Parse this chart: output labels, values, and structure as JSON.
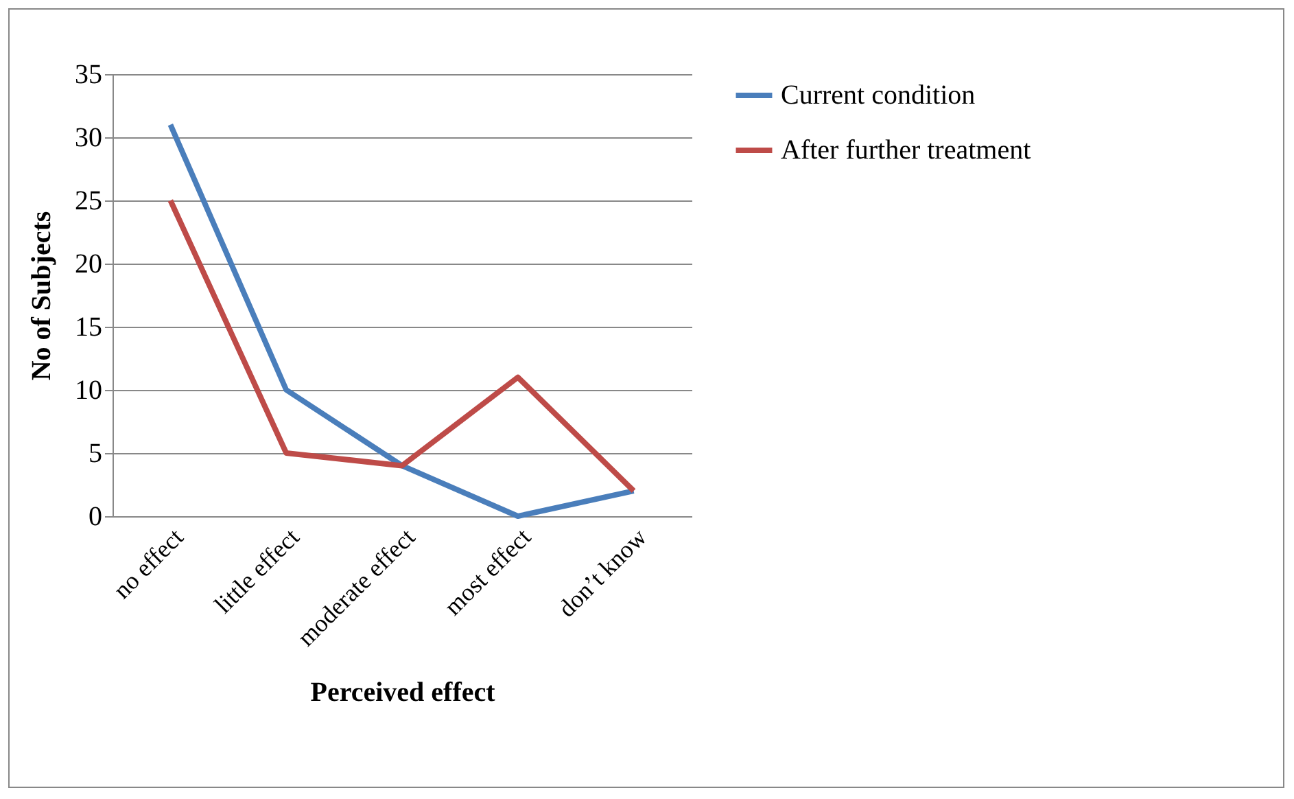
{
  "chart_data": {
    "type": "line",
    "xlabel": "Perceived effect",
    "ylabel": "No of Subjects",
    "categories": [
      "no effect",
      "little effect",
      "moderate effect",
      "most effect",
      "don’t know"
    ],
    "series": [
      {
        "name": "Current condition",
        "color": "#4a7ebb",
        "values": [
          31,
          10,
          4,
          0,
          2
        ]
      },
      {
        "name": "After further treatment",
        "color": "#be4b48",
        "values": [
          25,
          5,
          4,
          11,
          2
        ]
      }
    ],
    "ylim": [
      0,
      35
    ],
    "yticks": [
      0,
      5,
      10,
      15,
      20,
      25,
      30,
      35
    ],
    "grid": "y",
    "legend": "right",
    "marker": "none",
    "line_style": "solid"
  }
}
